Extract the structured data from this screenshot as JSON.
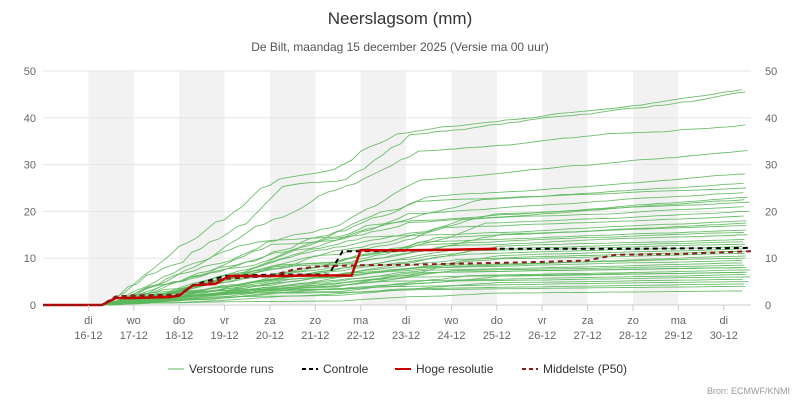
{
  "chart_data": {
    "type": "line",
    "title": "Neerslagsom (mm)",
    "subtitle": "De Bilt, maandag 15 december 2025 (Versie ma 00 uur)",
    "credit": "Bron: ECMWF/KNMI",
    "ylim": [
      0,
      50
    ],
    "y_ticks": [
      "0",
      "10",
      "20",
      "30",
      "40",
      "50"
    ],
    "xlim": [
      0,
      15.6
    ],
    "x_ticks": [
      {
        "day": "di",
        "date": "16-12"
      },
      {
        "day": "wo",
        "date": "17-12"
      },
      {
        "day": "do",
        "date": "18-12"
      },
      {
        "day": "vr",
        "date": "19-12"
      },
      {
        "day": "za",
        "date": "20-12"
      },
      {
        "day": "zo",
        "date": "21-12"
      },
      {
        "day": "ma",
        "date": "22-12"
      },
      {
        "day": "di",
        "date": "23-12"
      },
      {
        "day": "wo",
        "date": "24-12"
      },
      {
        "day": "do",
        "date": "25-12"
      },
      {
        "day": "vr",
        "date": "26-12"
      },
      {
        "day": "za",
        "date": "27-12"
      },
      {
        "day": "zo",
        "date": "28-12"
      },
      {
        "day": "ma",
        "date": "29-12"
      },
      {
        "day": "di",
        "date": "30-12"
      }
    ],
    "weekend_bands": [
      [
        1,
        2
      ],
      [
        3,
        4
      ],
      [
        5,
        6
      ],
      [
        7,
        8
      ],
      [
        9,
        10
      ],
      [
        11,
        12
      ],
      [
        13,
        14
      ]
    ],
    "legend": [
      {
        "label": "Verstoorde runs",
        "color": "#5cb85c",
        "dash": "solid"
      },
      {
        "label": "Controle",
        "color": "#000000",
        "dash": "dashed"
      },
      {
        "label": "Hoge resolutie",
        "color": "#cc0000",
        "dash": "solid"
      },
      {
        "label": "Middelste (P50)",
        "color": "#8b1a1a",
        "dash": "dashed"
      }
    ],
    "series": [
      {
        "name": "Controle",
        "color": "#000000",
        "dash": "dashed",
        "x": [
          0,
          1.3,
          1.6,
          2,
          3,
          3.3,
          4,
          5,
          6.3,
          6.6,
          7,
          8,
          9,
          10,
          11,
          12,
          13,
          14,
          15.6
        ],
        "y": [
          0,
          0,
          1.8,
          2,
          2.2,
          4.2,
          6.2,
          6.5,
          6.5,
          11.5,
          11.5,
          11.6,
          11.8,
          12,
          12,
          12,
          12,
          12.1,
          12.2
        ]
      },
      {
        "name": "Hoge resolutie",
        "color": "#cc0000",
        "dash": "solid",
        "x": [
          0,
          1.3,
          1.6,
          2,
          2.8,
          3,
          3.3,
          3.8,
          4.1,
          4.5,
          5,
          6,
          6.8,
          7,
          7.5,
          8,
          9,
          10
        ],
        "y": [
          0,
          0,
          1.5,
          1.5,
          1.7,
          2,
          4.2,
          4.5,
          6.2,
          6.2,
          6.2,
          6.3,
          6.3,
          11.7,
          11.7,
          11.7,
          11.8,
          12
        ]
      },
      {
        "name": "Middelste (P50)",
        "color": "#8b1a1a",
        "dash": "dashed",
        "x": [
          0,
          1.3,
          1.6,
          2,
          3,
          3.3,
          4,
          5,
          5.5,
          6,
          7,
          8,
          9,
          10,
          11,
          12,
          12.6,
          13,
          14,
          15.6
        ],
        "y": [
          0,
          0,
          1.8,
          2,
          2.2,
          4.2,
          5.6,
          6.2,
          7.5,
          8.2,
          8.5,
          8.6,
          8.8,
          9,
          9.2,
          9.5,
          10.7,
          10.8,
          10.9,
          11.5
        ]
      }
    ],
    "perturbed_runs_final_totals": [
      46,
      45.5,
      38.5,
      33,
      28,
      26,
      25,
      24,
      23,
      22.5,
      22,
      21,
      20,
      19,
      18,
      17.5,
      17,
      16,
      15.5,
      15,
      14,
      13.5,
      13,
      12.5,
      12,
      11.5,
      11,
      10.5,
      10,
      9.5,
      9,
      8.5,
      8,
      8,
      7.5,
      7,
      7,
      6.5,
      6,
      5.5,
      5,
      4.5,
      4,
      3
    ]
  }
}
